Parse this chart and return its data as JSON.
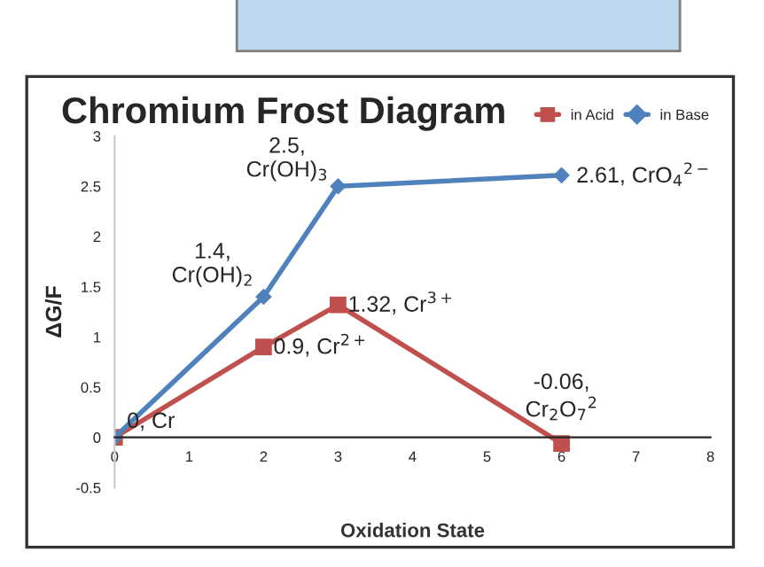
{
  "chart_data": {
    "type": "line",
    "title": "Chromium Frost Diagram",
    "xlabel": "Oxidation State",
    "ylabel": "ΔG/F",
    "series": [
      {
        "name": "in Acid",
        "color": "#c0504d",
        "marker": "square",
        "x": [
          0,
          2,
          3,
          6
        ],
        "values": [
          0,
          0.9,
          1.32,
          -0.06
        ]
      },
      {
        "name": "in Base",
        "color": "#4f81bd",
        "marker": "diamond",
        "x": [
          0,
          2,
          3,
          6
        ],
        "values": [
          0,
          1.4,
          2.5,
          2.61
        ]
      }
    ],
    "xlim": [
      0,
      8
    ],
    "xticks": [
      0,
      1,
      2,
      3,
      4,
      5,
      6,
      7,
      8
    ],
    "ylim": [
      -0.5,
      3
    ],
    "yticks": [
      -0.5,
      0,
      0.5,
      1,
      1.5,
      2,
      2.5,
      3
    ],
    "annotations": [
      {
        "text": "0, Cr",
        "x": 0,
        "y": 0
      },
      {
        "text": "0.9, Cr$^{2+}$",
        "x": 2,
        "y": 0.9
      },
      {
        "text": "1.32, Cr$^{3+}$",
        "x": 3,
        "y": 1.32
      },
      {
        "text": "-0.06,\nCr$_{2}$O$_{7}$$^{2}$",
        "x": 6,
        "y": -0.06
      },
      {
        "text": "1.4,\nCr(OH)$_{2}$",
        "x": 2,
        "y": 1.4
      },
      {
        "text": "2.5,\nCr(OH)$_{3}$",
        "x": 3,
        "y": 2.5
      },
      {
        "text": "2.61, CrO$_{4}$$^{2−}$",
        "x": 6,
        "y": 2.61
      }
    ],
    "grid": false,
    "legend": "top right",
    "line_style": "solid"
  }
}
